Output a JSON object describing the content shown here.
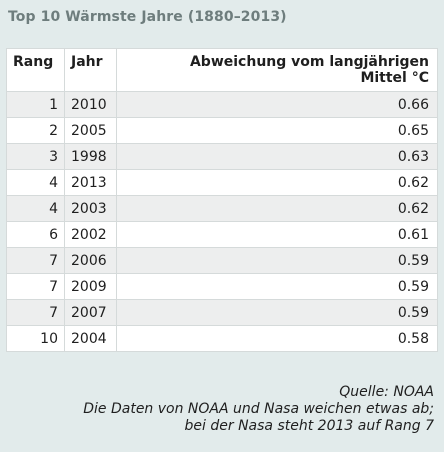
{
  "title": "Top 10 Wärmste Jahre (1880–2013)",
  "table": {
    "headers": {
      "rank": "Rang",
      "year": "Jahr",
      "deviation_line1": "Abweichung vom langjährigen",
      "deviation_line2": "Mittel °C"
    },
    "rows": [
      {
        "rank": "1",
        "year": "2010",
        "deviation": "0.66"
      },
      {
        "rank": "2",
        "year": "2005",
        "deviation": "0.65"
      },
      {
        "rank": "3",
        "year": "1998",
        "deviation": "0.63"
      },
      {
        "rank": "4",
        "year": "2013",
        "deviation": "0.62"
      },
      {
        "rank": "4",
        "year": "2003",
        "deviation": "0.62"
      },
      {
        "rank": "6",
        "year": "2002",
        "deviation": "0.61"
      },
      {
        "rank": "7",
        "year": "2006",
        "deviation": "0.59"
      },
      {
        "rank": "7",
        "year": "2009",
        "deviation": "0.59"
      },
      {
        "rank": "7",
        "year": "2007",
        "deviation": "0.59"
      },
      {
        "rank": "10",
        "year": "2004",
        "deviation": "0.58"
      }
    ]
  },
  "footer": {
    "source": "Quelle: NOAA",
    "note_line1": "Die Daten von NOAA und Nasa weichen etwas ab;",
    "note_line2": "bei der Nasa steht 2013 auf Rang 7"
  }
}
